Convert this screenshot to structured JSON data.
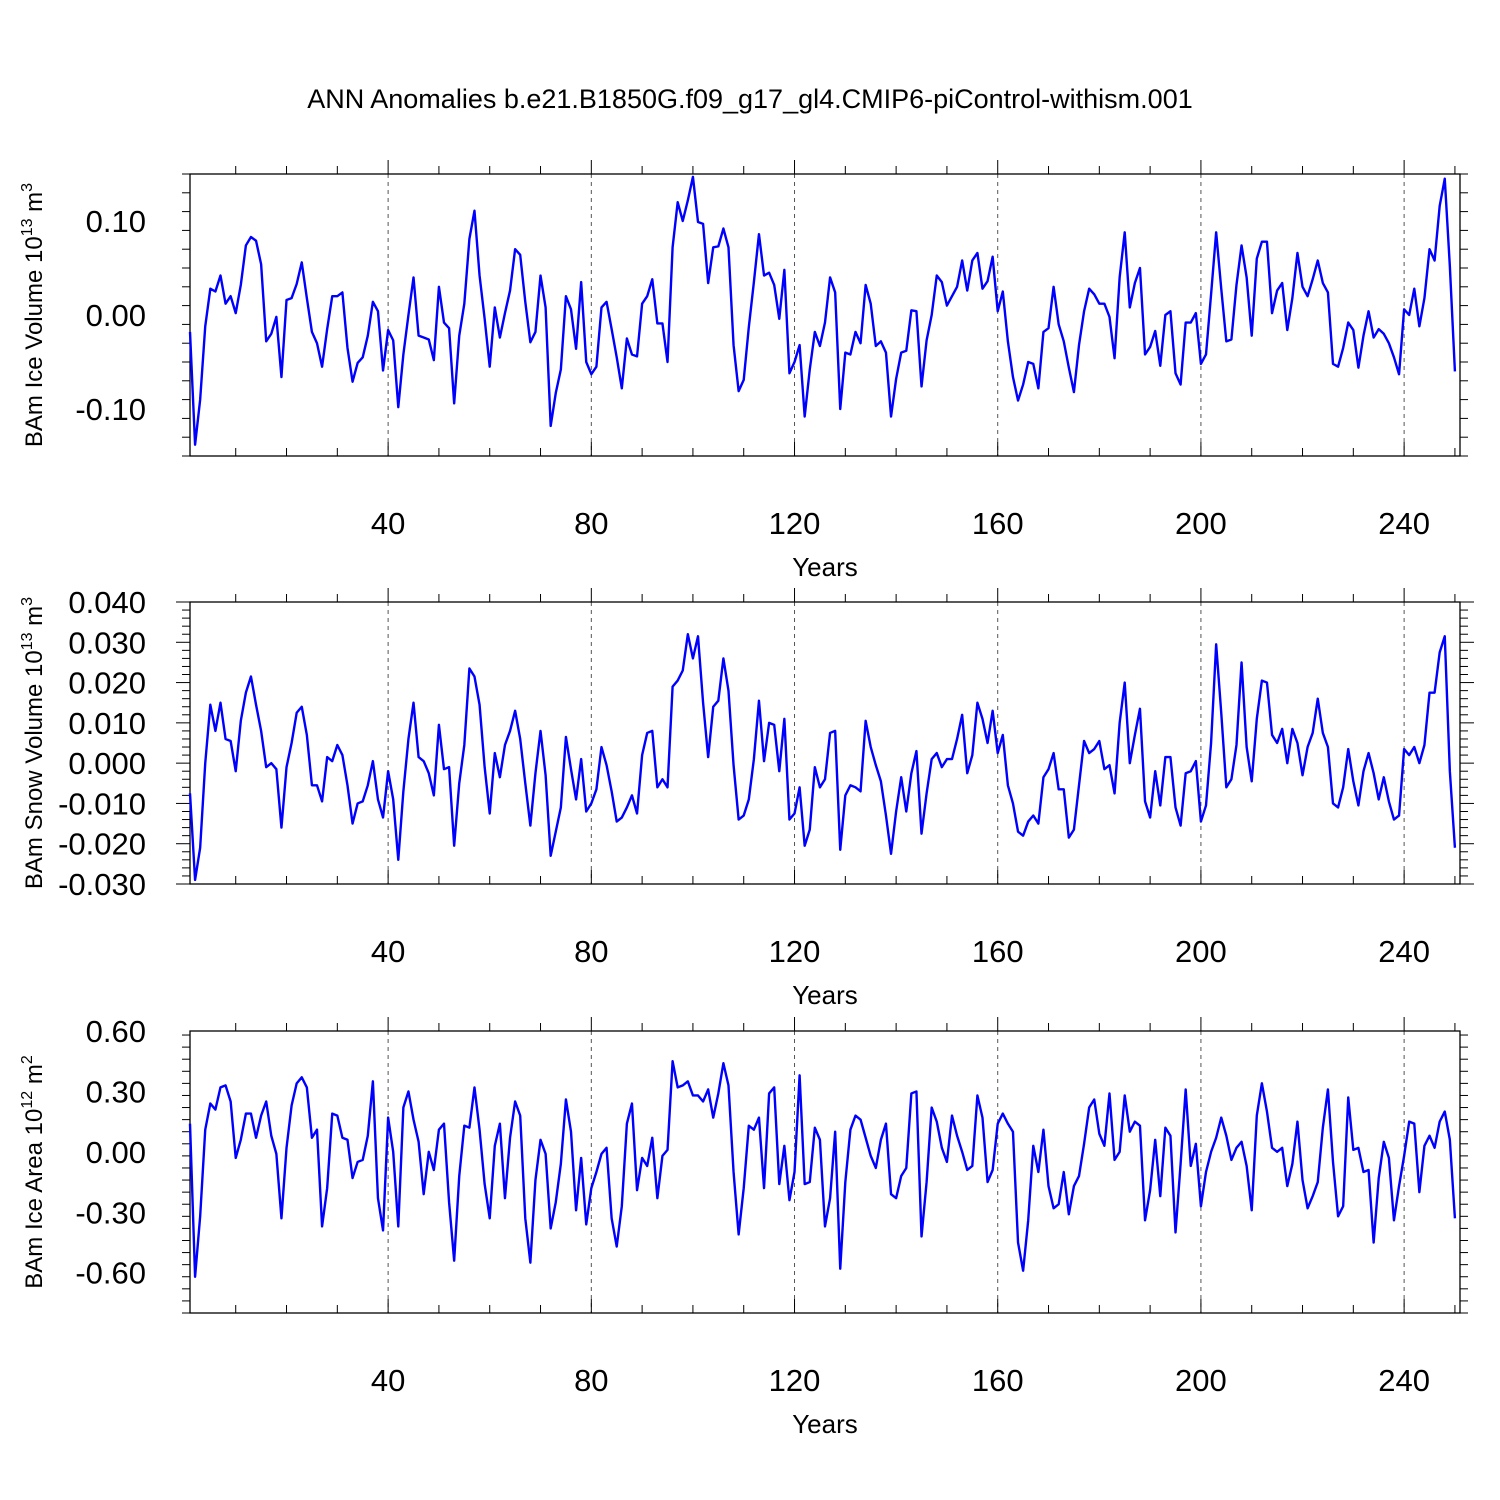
{
  "figure": {
    "title": "ANN Anomalies b.e21.B1850G.f09_g17_gl4.CMIP6-piControl-withism.001",
    "line_color": "#0000ff"
  },
  "chart_data": [
    {
      "type": "line",
      "title": "",
      "xlabel": "Years",
      "ylabel": "BAm Ice Volume 10",
      "ylabel_exponent": "13",
      "ylabel_unit": "m",
      "ylabel_unit_exponent": "3",
      "xlim": [
        1,
        251
      ],
      "ylim": [
        -0.15,
        0.15
      ],
      "xticks": [
        40,
        80,
        120,
        160,
        200,
        240
      ],
      "xtick_labels": [
        "40",
        "80",
        "120",
        "160",
        "200",
        "240"
      ],
      "yticks": [
        -0.1,
        0.0,
        0.1
      ],
      "ytick_labels": [
        "-0.10",
        "0.00",
        "0.10"
      ],
      "grid": "vertical dashed at major x ticks",
      "series": [
        {
          "x_start": 1,
          "values": [
            -0.018,
            -0.138,
            -0.09,
            -0.012,
            0.028,
            0.025,
            0.042,
            0.012,
            0.02,
            0.002,
            0.032,
            0.074,
            0.083,
            0.079,
            0.054,
            -0.028,
            -0.02,
            -0.002,
            -0.066,
            0.016,
            0.018,
            0.033,
            0.056,
            0.018,
            -0.018,
            -0.03,
            -0.055,
            -0.015,
            0.02,
            0.02,
            0.024,
            -0.035,
            -0.071,
            -0.051,
            -0.045,
            -0.022,
            0.014,
            0.004,
            -0.059,
            -0.016,
            -0.027,
            -0.098,
            -0.042,
            0.0,
            0.04,
            -0.022,
            -0.024,
            -0.026,
            -0.048,
            0.03,
            -0.008,
            -0.014,
            -0.094,
            -0.022,
            0.012,
            0.081,
            0.111,
            0.042,
            -0.004,
            -0.055,
            0.008,
            -0.024,
            0.002,
            0.026,
            0.07,
            0.064,
            0.014,
            -0.029,
            -0.018,
            0.042,
            0.008,
            -0.118,
            -0.083,
            -0.058,
            0.02,
            0.006,
            -0.036,
            0.035,
            -0.05,
            -0.063,
            -0.055,
            0.008,
            0.014,
            -0.015,
            -0.045,
            -0.078,
            -0.025,
            -0.042,
            -0.044,
            0.012,
            0.02,
            0.038,
            -0.009,
            -0.009,
            -0.05,
            0.072,
            0.12,
            0.1,
            0.122,
            0.147,
            0.099,
            0.097,
            0.034,
            0.072,
            0.073,
            0.092,
            0.072,
            -0.032,
            -0.081,
            -0.069,
            -0.013,
            0.035,
            0.086,
            0.042,
            0.045,
            0.032,
            -0.004,
            0.048,
            -0.062,
            -0.05,
            -0.032,
            -0.108,
            -0.058,
            -0.018,
            -0.033,
            -0.008,
            0.04,
            0.024,
            -0.1,
            -0.04,
            -0.042,
            -0.018,
            -0.03,
            0.032,
            0.012,
            -0.033,
            -0.028,
            -0.04,
            -0.108,
            -0.068,
            -0.04,
            -0.038,
            0.005,
            0.004,
            -0.076,
            -0.027,
            0.0,
            0.042,
            0.035,
            0.01,
            0.02,
            0.03,
            0.058,
            0.026,
            0.058,
            0.066,
            0.028,
            0.036,
            0.062,
            0.004,
            0.025,
            -0.028,
            -0.066,
            -0.091,
            -0.074,
            -0.05,
            -0.052,
            -0.078,
            -0.018,
            -0.014,
            0.03,
            -0.01,
            -0.028,
            -0.056,
            -0.082,
            -0.032,
            0.004,
            0.028,
            0.022,
            0.012,
            0.012,
            -0.002,
            -0.046,
            0.04,
            0.088,
            0.008,
            0.034,
            0.05,
            -0.042,
            -0.034,
            -0.017,
            -0.054,
            0.0,
            0.004,
            -0.062,
            -0.074,
            -0.008,
            -0.008,
            0.002,
            -0.052,
            -0.042,
            0.022,
            0.088,
            0.028,
            -0.028,
            -0.026,
            0.032,
            0.074,
            0.04,
            -0.022,
            0.06,
            0.078,
            0.078,
            0.002,
            0.026,
            0.034,
            -0.016,
            0.018,
            0.066,
            0.03,
            0.02,
            0.038,
            0.058,
            0.034,
            0.024,
            -0.052,
            -0.055,
            -0.035,
            -0.008,
            -0.016,
            -0.056,
            -0.022,
            0.004,
            -0.024,
            -0.015,
            -0.02,
            -0.03,
            -0.045,
            -0.063,
            0.006,
            0.0,
            0.028,
            -0.012,
            0.018,
            0.07,
            0.058,
            0.116,
            0.145,
            0.052,
            -0.06
          ]
        }
      ]
    },
    {
      "type": "line",
      "title": "",
      "xlabel": "Years",
      "ylabel": "BAm Snow Volume 10",
      "ylabel_exponent": "13",
      "ylabel_unit": "m",
      "ylabel_unit_exponent": "3",
      "xlim": [
        1,
        251
      ],
      "ylim": [
        -0.03,
        0.04
      ],
      "xticks": [
        40,
        80,
        120,
        160,
        200,
        240
      ],
      "xtick_labels": [
        "40",
        "80",
        "120",
        "160",
        "200",
        "240"
      ],
      "yticks": [
        -0.03,
        -0.02,
        -0.01,
        0.0,
        0.01,
        0.02,
        0.03,
        0.04
      ],
      "ytick_labels": [
        "-0.030",
        "-0.020",
        "-0.010",
        "0.000",
        "0.010",
        "0.020",
        "0.030",
        "0.040"
      ],
      "grid": "vertical dashed at major x ticks",
      "series": [
        {
          "x_start": 1,
          "values": [
            -0.0075,
            -0.029,
            -0.021,
            0.0,
            0.0145,
            0.008,
            0.015,
            0.006,
            0.0055,
            -0.002,
            0.0105,
            0.0175,
            0.0215,
            0.0145,
            0.008,
            -0.001,
            0.0,
            -0.0015,
            -0.016,
            -0.001,
            0.005,
            0.0125,
            0.014,
            0.007,
            -0.0055,
            -0.0055,
            -0.0095,
            0.0015,
            0.0005,
            0.0045,
            0.002,
            -0.0055,
            -0.015,
            -0.01,
            -0.0095,
            -0.0055,
            0.0005,
            -0.009,
            -0.0135,
            -0.002,
            -0.009,
            -0.024,
            -0.007,
            0.006,
            0.015,
            0.0015,
            0.0005,
            -0.0025,
            -0.008,
            0.0095,
            -0.0015,
            -0.001,
            -0.0205,
            -0.005,
            0.0045,
            0.0235,
            0.0215,
            0.0145,
            -0.001,
            -0.0125,
            0.0025,
            -0.0035,
            0.0045,
            0.008,
            0.013,
            0.006,
            -0.005,
            -0.0155,
            -0.0025,
            0.008,
            -0.003,
            -0.023,
            -0.017,
            -0.011,
            0.0065,
            -0.0015,
            -0.009,
            0.001,
            -0.012,
            -0.01,
            -0.0065,
            0.004,
            -0.0005,
            -0.007,
            -0.0145,
            -0.0135,
            -0.011,
            -0.008,
            -0.0125,
            0.002,
            0.0075,
            0.008,
            -0.006,
            -0.004,
            -0.006,
            0.019,
            0.0205,
            0.023,
            0.032,
            0.026,
            0.0315,
            0.015,
            0.0015,
            0.014,
            0.0155,
            0.026,
            0.018,
            -0.0005,
            -0.014,
            -0.013,
            -0.009,
            0.001,
            0.0155,
            0.0005,
            0.01,
            0.0095,
            -0.002,
            0.011,
            -0.014,
            -0.0125,
            -0.006,
            -0.0205,
            -0.0165,
            -0.001,
            -0.006,
            -0.004,
            0.0075,
            0.008,
            -0.0215,
            -0.008,
            -0.0055,
            -0.006,
            -0.007,
            0.0105,
            0.004,
            -0.0005,
            -0.0045,
            -0.013,
            -0.0225,
            -0.012,
            -0.0035,
            -0.012,
            -0.0025,
            0.003,
            -0.0175,
            -0.0075,
            0.001,
            0.0025,
            -0.001,
            0.001,
            0.001,
            0.006,
            0.012,
            -0.0025,
            0.002,
            0.015,
            0.011,
            0.005,
            0.013,
            0.0025,
            0.007,
            -0.0055,
            -0.01,
            -0.017,
            -0.018,
            -0.0145,
            -0.013,
            -0.015,
            -0.0035,
            -0.0015,
            0.0025,
            -0.0065,
            -0.0065,
            -0.0185,
            -0.0165,
            -0.0055,
            0.0055,
            0.0025,
            0.0035,
            0.0055,
            -0.0015,
            -0.0005,
            -0.0075,
            0.01,
            0.02,
            0.0,
            0.007,
            0.0135,
            -0.0095,
            -0.0135,
            -0.002,
            -0.0105,
            0.0015,
            0.0015,
            -0.011,
            -0.0155,
            -0.0025,
            -0.002,
            0.0005,
            -0.0145,
            -0.0105,
            0.005,
            0.0295,
            0.0125,
            -0.006,
            -0.004,
            0.0045,
            0.025,
            0.004,
            -0.0045,
            0.011,
            0.0205,
            0.02,
            0.007,
            0.005,
            0.0085,
            0.0,
            0.0085,
            0.005,
            -0.003,
            0.004,
            0.0075,
            0.016,
            0.0075,
            0.004,
            -0.01,
            -0.011,
            -0.006,
            0.0035,
            -0.0045,
            -0.0105,
            -0.002,
            0.0025,
            -0.0025,
            -0.009,
            -0.0035,
            -0.0095,
            -0.014,
            -0.013,
            0.0035,
            0.002,
            0.004,
            0.0,
            0.0045,
            0.0175,
            0.0175,
            0.0275,
            0.0315,
            -0.002,
            -0.021
          ]
        }
      ]
    },
    {
      "type": "line",
      "title": "",
      "xlabel": "Years",
      "ylabel": "BAm Ice Area 10",
      "ylabel_exponent": "12",
      "ylabel_unit": "m",
      "ylabel_unit_exponent": "2",
      "xlim": [
        1,
        251
      ],
      "ylim": [
        -0.8,
        0.6
      ],
      "xticks": [
        40,
        80,
        120,
        160,
        200,
        240
      ],
      "xtick_labels": [
        "40",
        "80",
        "120",
        "160",
        "200",
        "240"
      ],
      "yticks": [
        -0.6,
        -0.3,
        0.0,
        0.3,
        0.6
      ],
      "ytick_labels": [
        "-0.60",
        "-0.30",
        "0.00",
        "0.30",
        "0.60"
      ],
      "grid": "vertical dashed at major x ticks",
      "series": [
        {
          "x_start": 1,
          "values": [
            0.14,
            -0.62,
            -0.32,
            0.11,
            0.24,
            0.21,
            0.32,
            0.33,
            0.25,
            -0.03,
            0.06,
            0.19,
            0.19,
            0.07,
            0.18,
            0.25,
            0.08,
            -0.01,
            -0.33,
            0.02,
            0.23,
            0.34,
            0.37,
            0.32,
            0.07,
            0.11,
            -0.37,
            -0.18,
            0.19,
            0.18,
            0.07,
            0.06,
            -0.13,
            -0.05,
            -0.04,
            0.08,
            0.35,
            -0.23,
            -0.39,
            0.17,
            0.0,
            -0.37,
            0.22,
            0.3,
            0.16,
            0.05,
            -0.21,
            0.0,
            -0.09,
            0.11,
            0.14,
            -0.25,
            -0.54,
            -0.12,
            0.13,
            0.12,
            0.32,
            0.11,
            -0.16,
            -0.33,
            0.03,
            0.14,
            -0.23,
            0.07,
            0.25,
            0.18,
            -0.33,
            -0.55,
            -0.14,
            0.06,
            -0.01,
            -0.38,
            -0.25,
            -0.06,
            0.26,
            0.1,
            -0.29,
            -0.03,
            -0.36,
            -0.18,
            -0.1,
            -0.01,
            0.02,
            -0.33,
            -0.47,
            -0.27,
            0.14,
            0.24,
            -0.19,
            -0.03,
            -0.07,
            0.07,
            -0.23,
            -0.02,
            0.01,
            0.45,
            0.32,
            0.33,
            0.35,
            0.28,
            0.28,
            0.25,
            0.31,
            0.17,
            0.29,
            0.44,
            0.33,
            -0.1,
            -0.41,
            -0.18,
            0.13,
            0.11,
            0.17,
            -0.18,
            0.29,
            0.32,
            -0.16,
            0.03,
            -0.24,
            -0.1,
            0.38,
            -0.16,
            -0.15,
            0.12,
            0.06,
            -0.37,
            -0.23,
            0.1,
            -0.58,
            -0.15,
            0.11,
            0.18,
            0.16,
            0.07,
            -0.02,
            -0.08,
            0.06,
            0.14,
            -0.21,
            -0.23,
            -0.12,
            -0.08,
            0.29,
            0.3,
            -0.42,
            -0.15,
            0.22,
            0.15,
            0.02,
            -0.05,
            0.18,
            0.08,
            0.0,
            -0.09,
            -0.07,
            0.28,
            0.17,
            -0.15,
            -0.09,
            0.14,
            0.19,
            0.14,
            0.1,
            -0.45,
            -0.59,
            -0.34,
            0.03,
            -0.1,
            0.11,
            -0.17,
            -0.28,
            -0.26,
            -0.1,
            -0.31,
            -0.17,
            -0.12,
            0.04,
            0.22,
            0.26,
            0.09,
            0.03,
            0.29,
            -0.04,
            0.0,
            0.28,
            0.1,
            0.15,
            0.13,
            -0.34,
            -0.19,
            0.06,
            -0.22,
            0.12,
            0.08,
            -0.4,
            -0.06,
            0.31,
            -0.07,
            0.04,
            -0.27,
            -0.1,
            0.0,
            0.07,
            0.17,
            0.08,
            -0.04,
            0.02,
            0.05,
            -0.07,
            -0.29,
            0.18,
            0.34,
            0.2,
            0.02,
            0.0,
            0.02,
            -0.17,
            -0.06,
            0.15,
            -0.14,
            -0.28,
            -0.22,
            -0.15,
            0.12,
            0.31,
            -0.05,
            -0.32,
            -0.27,
            0.27,
            0.01,
            0.02,
            -0.1,
            -0.09,
            -0.45,
            -0.13,
            0.05,
            -0.03,
            -0.34,
            -0.17,
            -0.02,
            0.15,
            0.14,
            -0.2,
            0.03,
            0.08,
            0.02,
            0.15,
            0.2,
            0.06,
            -0.33
          ]
        }
      ]
    }
  ]
}
